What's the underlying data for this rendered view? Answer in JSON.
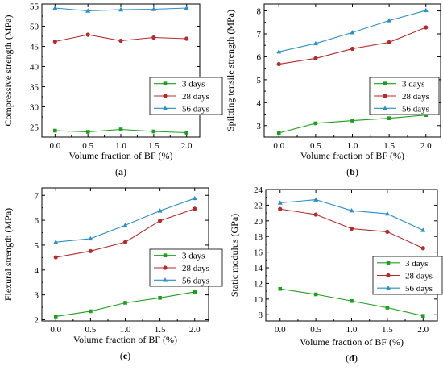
{
  "figure": {
    "panels_order": [
      "a",
      "b",
      "c",
      "d"
    ]
  },
  "colors": {
    "3 days": "#1e9e1e",
    "28 days": "#b52a2a",
    "56 days": "#2a8fc7"
  },
  "markers": {
    "3 days": "square",
    "28 days": "circle",
    "56 days": "triangle"
  },
  "chart_data": [
    {
      "type": "line",
      "panel_label": "(a)",
      "xlabel": "Volume fraction of BF (%)",
      "ylabel": "Compressive strength (MPa)",
      "x": [
        0.0,
        0.5,
        1.0,
        1.5,
        2.0
      ],
      "xticks": [
        "0.0",
        "0.5",
        "1.0",
        "1.5",
        "2.0"
      ],
      "xlim": [
        -0.2,
        2.2
      ],
      "ylim": [
        22.5,
        55.5
      ],
      "yticks": [
        25,
        30,
        35,
        40,
        45,
        50,
        55
      ],
      "legend_position": "center-right",
      "series": [
        {
          "name": "3 days",
          "values": [
            24.1,
            23.8,
            24.4,
            23.9,
            23.6
          ]
        },
        {
          "name": "28 days",
          "values": [
            46.2,
            47.9,
            46.4,
            47.2,
            46.9
          ]
        },
        {
          "name": "56 days",
          "values": [
            54.5,
            53.8,
            54.1,
            54.2,
            54.5
          ]
        }
      ]
    },
    {
      "type": "line",
      "panel_label": "(b)",
      "xlabel": "Volume fraction of BF (%)",
      "ylabel": "Spiltting tensile strength (MPa)",
      "x": [
        0.0,
        0.5,
        1.0,
        1.5,
        2.0
      ],
      "xticks": [
        "0.0",
        "0.5",
        "1.0",
        "1.5",
        "2.0"
      ],
      "xlim": [
        -0.2,
        2.2
      ],
      "ylim": [
        2.5,
        8.3
      ],
      "yticks": [
        3,
        4,
        5,
        6,
        7,
        8
      ],
      "legend_position": "bottom-right",
      "series": [
        {
          "name": "3 days",
          "values": [
            2.68,
            3.1,
            3.22,
            3.32,
            3.46
          ]
        },
        {
          "name": "28 days",
          "values": [
            5.68,
            5.93,
            6.35,
            6.63,
            7.28
          ]
        },
        {
          "name": "56 days",
          "values": [
            6.22,
            6.58,
            7.06,
            7.58,
            8.02
          ]
        }
      ]
    },
    {
      "type": "line",
      "panel_label": "(c)",
      "xlabel": "Volume fraction of BF (%)",
      "ylabel": "Flexural strength (MPa)",
      "x": [
        0.0,
        0.5,
        1.0,
        1.5,
        2.0
      ],
      "xticks": [
        "0.0",
        "0.5",
        "1.0",
        "1.5",
        "2.0"
      ],
      "xlim": [
        -0.2,
        2.2
      ],
      "ylim": [
        1.95,
        7.3
      ],
      "yticks": [
        2,
        3,
        4,
        5,
        6,
        7
      ],
      "legend_position": "bottom-right",
      "series": [
        {
          "name": "3 days",
          "values": [
            2.13,
            2.34,
            2.68,
            2.88,
            3.12
          ]
        },
        {
          "name": "28 days",
          "values": [
            4.51,
            4.76,
            5.12,
            5.98,
            6.46
          ]
        },
        {
          "name": "56 days",
          "values": [
            5.12,
            5.26,
            5.8,
            6.38,
            6.88
          ]
        }
      ]
    },
    {
      "type": "line",
      "panel_label": "(d)",
      "xlabel": "Volume fraction of BF (%)",
      "ylabel": "Static modulus (GPa)",
      "x": [
        0.0,
        0.5,
        1.0,
        1.5,
        2.0
      ],
      "xticks": [
        "0.0",
        "0.5",
        "1.0",
        "1.5",
        "2.0"
      ],
      "xlim": [
        -0.2,
        2.2
      ],
      "ylim": [
        7.2,
        24.0
      ],
      "yticks": [
        8,
        10,
        12,
        14,
        16,
        18,
        20,
        22,
        24
      ],
      "legend_position": "bottom-right",
      "series": [
        {
          "name": "3 days",
          "values": [
            11.3,
            10.6,
            9.75,
            8.9,
            7.85
          ]
        },
        {
          "name": "28 days",
          "values": [
            21.5,
            20.8,
            19.0,
            18.6,
            16.5
          ]
        },
        {
          "name": "56 days",
          "values": [
            22.3,
            22.7,
            21.3,
            20.9,
            18.8
          ]
        }
      ]
    }
  ]
}
